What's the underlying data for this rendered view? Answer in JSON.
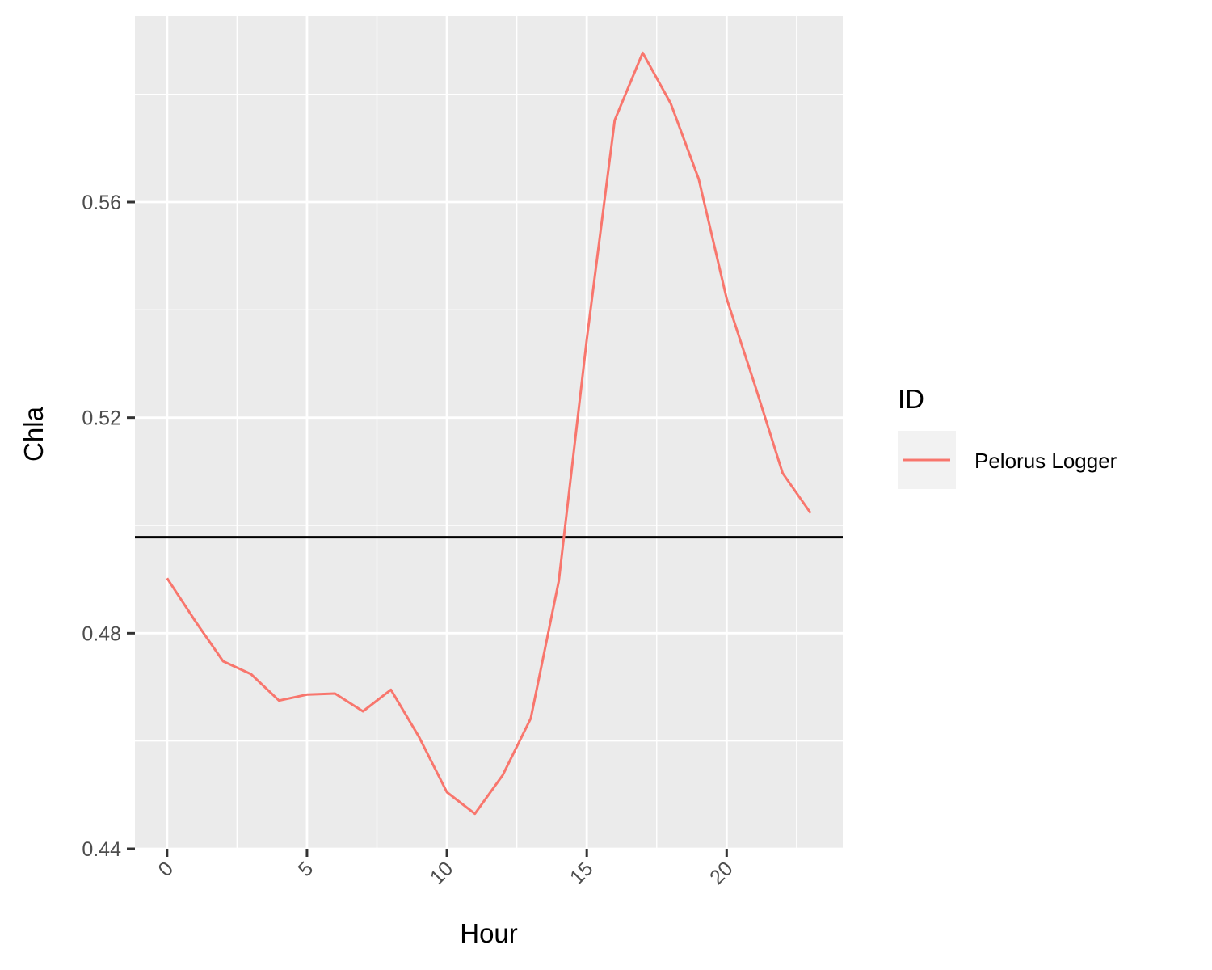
{
  "chart_data": {
    "type": "line",
    "xlabel": "Hour",
    "ylabel": "Chla",
    "xlim": [
      -1.15,
      24.15
    ],
    "ylim": [
      0.44,
      0.5945
    ],
    "x_ticks": [
      {
        "value": 0,
        "label": "0"
      },
      {
        "value": 5,
        "label": "5"
      },
      {
        "value": 10,
        "label": "10"
      },
      {
        "value": 15,
        "label": "15"
      },
      {
        "value": 20,
        "label": "20"
      }
    ],
    "y_ticks": [
      {
        "value": 0.44,
        "label": "0.44"
      },
      {
        "value": 0.48,
        "label": "0.48"
      },
      {
        "value": 0.52,
        "label": "0.52"
      },
      {
        "value": 0.56,
        "label": "0.56"
      }
    ],
    "reference_line": {
      "y": 0.4978
    },
    "legend": {
      "title": "ID",
      "position": "right"
    },
    "series": [
      {
        "name": "Pelorus Logger",
        "color": "#F8766D",
        "x": [
          0,
          1,
          2,
          3,
          4,
          5,
          6,
          7,
          8,
          9,
          10,
          11,
          12,
          13,
          14,
          15,
          16,
          17,
          18,
          19,
          20,
          21,
          22,
          23
        ],
        "y": [
          0.4902,
          0.4823,
          0.4748,
          0.4724,
          0.4675,
          0.4686,
          0.4688,
          0.4655,
          0.4695,
          0.4608,
          0.4505,
          0.4465,
          0.4537,
          0.4642,
          0.4897,
          0.5345,
          0.5752,
          0.5877,
          0.5783,
          0.5643,
          0.5421,
          0.5262,
          0.5097,
          0.5023
        ]
      }
    ],
    "grid": true
  }
}
